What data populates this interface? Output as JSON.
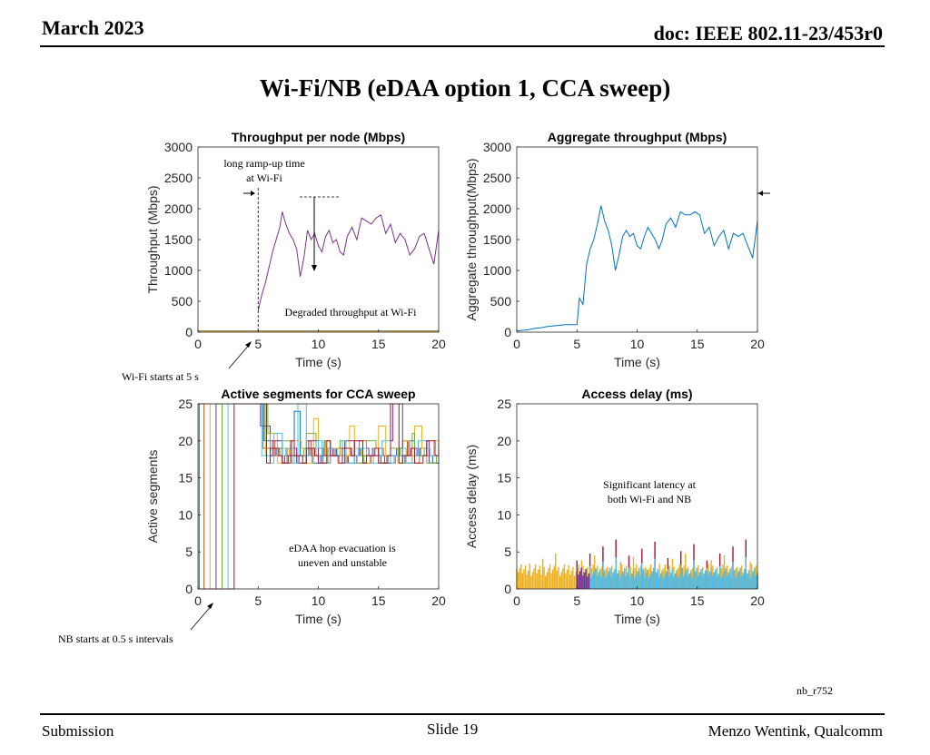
{
  "header": {
    "date": "March 2023",
    "doc": "doc: IEEE 802.11-23/453r0"
  },
  "slide_title": "Wi-Fi/NB (eDAA option 1, CCA sweep)",
  "annotations": {
    "ramp_up": "long ramp-up time at Wi-Fi",
    "degraded": "Degraded throughput at Wi-Fi",
    "wifi_starts": "Wi-Fi starts at 5 s",
    "hop_evac": "eDAA hop evacuation is uneven and unstable",
    "latency": "Significant latency at both Wi-Fi and NB",
    "nb_starts": "NB starts at 0.5 s intervals",
    "ref": "nb_r752"
  },
  "footer": {
    "left": "Submission",
    "center": "Slide 19",
    "right": "Menzo Wentink, Qualcomm"
  },
  "colors": {
    "purple": "#7e2f8e",
    "blue": "#0072bd",
    "orange": "#d95319",
    "yellow": "#edb120",
    "green": "#77ac30",
    "cyan": "#4dbeee",
    "red": "#a2142f"
  },
  "chart_data": [
    {
      "type": "line",
      "title": "Throughput per node (Mbps)",
      "xlabel": "Time (s)",
      "ylabel": "Throughput (Mbps)",
      "xlim": [
        0,
        20
      ],
      "ylim": [
        0,
        3000
      ],
      "xticks": [
        0,
        5,
        10,
        15,
        20
      ],
      "yticks": [
        0,
        500,
        1000,
        1500,
        2000,
        2500,
        3000
      ],
      "series": [
        {
          "color": "#7e2f8e",
          "x": [
            5,
            5.3,
            5.6,
            5.9,
            6.2,
            6.5,
            6.8,
            7.0,
            7.3,
            7.6,
            7.9,
            8.2,
            8.5,
            8.8,
            9.1,
            9.4,
            9.7,
            10.0,
            10.3,
            10.6,
            10.9,
            11.2,
            11.5,
            11.8,
            12.1,
            12.4,
            12.8,
            13.2,
            13.6,
            14.0,
            14.4,
            14.8,
            15.2,
            15.6,
            16.0,
            16.4,
            16.8,
            17.2,
            17.6,
            18.0,
            18.4,
            18.8,
            19.2,
            19.6,
            20
          ],
          "y": [
            350,
            600,
            800,
            1050,
            1300,
            1500,
            1700,
            1950,
            1750,
            1600,
            1500,
            1350,
            900,
            1200,
            1650,
            1500,
            1600,
            1400,
            1300,
            1550,
            1650,
            1450,
            1500,
            1300,
            1250,
            1550,
            1700,
            1500,
            1850,
            1800,
            1750,
            1850,
            1900,
            1600,
            1750,
            1450,
            1600,
            1500,
            1250,
            1350,
            1550,
            1600,
            1350,
            1100,
            1650
          ]
        },
        {
          "color": "#0072bd",
          "x": [
            0,
            20
          ],
          "y": [
            20,
            20
          ]
        },
        {
          "color": "#d95319",
          "x": [
            0,
            20
          ],
          "y": [
            15,
            15
          ]
        },
        {
          "color": "#edb120",
          "x": [
            0,
            20
          ],
          "y": [
            10,
            10
          ]
        }
      ]
    },
    {
      "type": "line",
      "title": "Aggregate throughput (Mbps)",
      "xlabel": "Time (s)",
      "ylabel": "Aggregate throughput(Mbps)",
      "xlim": [
        0,
        20
      ],
      "ylim": [
        0,
        3000
      ],
      "xticks": [
        0,
        5,
        10,
        15,
        20
      ],
      "yticks": [
        0,
        500,
        1000,
        1500,
        2000,
        2500,
        3000
      ],
      "series": [
        {
          "color": "#0072bd",
          "x": [
            0,
            0.5,
            1,
            1.5,
            2,
            2.5,
            3,
            3.5,
            4,
            4.5,
            5,
            5.2,
            5.5,
            5.8,
            6.1,
            6.4,
            6.7,
            7.0,
            7.3,
            7.6,
            7.9,
            8.2,
            8.5,
            8.8,
            9.1,
            9.4,
            9.7,
            10.0,
            10.3,
            10.6,
            10.9,
            11.2,
            11.5,
            11.8,
            12.1,
            12.4,
            12.8,
            13.2,
            13.6,
            14.0,
            14.4,
            14.8,
            15.2,
            15.6,
            16.0,
            16.4,
            16.8,
            17.2,
            17.6,
            18.0,
            18.4,
            18.8,
            19.2,
            19.6,
            20
          ],
          "y": [
            20,
            30,
            40,
            60,
            70,
            90,
            100,
            110,
            120,
            120,
            120,
            550,
            450,
            1100,
            1350,
            1500,
            1750,
            2050,
            1800,
            1650,
            1400,
            1000,
            1250,
            1550,
            1650,
            1550,
            1600,
            1400,
            1350,
            1550,
            1700,
            1600,
            1500,
            1350,
            1500,
            1750,
            1850,
            1700,
            1950,
            1900,
            1900,
            1950,
            1900,
            1600,
            1700,
            1400,
            1550,
            1650,
            1350,
            1600,
            1550,
            1600,
            1400,
            1200,
            1800
          ]
        }
      ]
    },
    {
      "type": "line",
      "title": "Active segments for CCA sweep",
      "xlabel": "Time (s)",
      "ylabel": "Active segments",
      "xlim": [
        0,
        20
      ],
      "ylim": [
        0,
        25
      ],
      "xticks": [
        0,
        5,
        10,
        15,
        20
      ],
      "yticks": [
        0,
        5,
        10,
        15,
        20,
        25
      ],
      "series": [
        {
          "color": "#0072bd",
          "x": [
            0,
            0.1,
            5,
            5.5,
            6,
            6.5,
            7,
            7.5,
            8,
            8.5,
            9,
            9.5,
            10,
            10.5,
            11,
            11.5,
            12,
            12.5,
            13,
            13.5,
            14,
            14.5,
            15,
            15.5,
            16,
            16.5,
            17,
            17.5,
            18,
            18.5,
            19,
            19.5,
            20
          ],
          "y": [
            0,
            25,
            25,
            20,
            18,
            19,
            17,
            18,
            24,
            18,
            19,
            17,
            18,
            20,
            18,
            19,
            18,
            17,
            19,
            18,
            18,
            19,
            18,
            17,
            18,
            19,
            18,
            20,
            18,
            19,
            18,
            17,
            18
          ]
        },
        {
          "color": "#d95319",
          "x": [
            0,
            0.5,
            5,
            5.4,
            6,
            6.4,
            7,
            7.4,
            8,
            8.4,
            9,
            9.4,
            10,
            10.4,
            11,
            11.4,
            12,
            12.4,
            13,
            13.4,
            14,
            14.4,
            15,
            15.4,
            16,
            16.4,
            17,
            17.4,
            18,
            18.4,
            19,
            19.4,
            20
          ],
          "y": [
            0,
            25,
            25,
            19,
            20,
            18,
            17,
            19,
            18,
            17,
            20,
            18,
            19,
            17,
            18,
            19,
            17,
            18,
            18,
            20,
            17,
            18,
            19,
            18,
            17,
            18,
            20,
            18,
            17,
            19,
            18,
            18,
            17
          ]
        },
        {
          "color": "#edb120",
          "x": [
            0,
            1.0,
            5,
            5.6,
            6,
            6.6,
            7,
            7.6,
            8,
            8.6,
            9,
            9.6,
            10,
            10.6,
            11,
            11.6,
            12,
            12.6,
            13,
            13.6,
            14,
            14.6,
            15,
            15.6,
            16,
            16.6,
            17,
            17.6,
            18,
            18.6,
            19,
            19.6,
            20
          ],
          "y": [
            0,
            25,
            25,
            18,
            21,
            17,
            19,
            18,
            20,
            19,
            17,
            23,
            18,
            20,
            19,
            17,
            18,
            22,
            19,
            18,
            17,
            19,
            22,
            18,
            19,
            17,
            20,
            18,
            22,
            19,
            18,
            20,
            17
          ]
        },
        {
          "color": "#7e2f8e",
          "x": [
            0,
            1.5,
            5,
            5.2,
            6,
            6.2,
            7,
            7.2,
            8,
            8.2,
            9,
            9.2,
            10,
            10.2,
            11,
            11.2,
            12,
            12.2,
            13,
            13.2,
            14,
            14.2,
            15,
            15.2,
            16,
            16.2,
            17,
            17.2,
            18,
            18.2,
            19,
            19.2,
            20
          ],
          "y": [
            0,
            25,
            25,
            22,
            18,
            20,
            17,
            18,
            19,
            17,
            18,
            20,
            17,
            18,
            19,
            18,
            17,
            20,
            18,
            17,
            19,
            18,
            18,
            17,
            20,
            25,
            18,
            17,
            19,
            18,
            20,
            17,
            18
          ]
        },
        {
          "color": "#77ac30",
          "x": [
            0,
            2.0,
            5,
            5.8,
            6,
            6.8,
            7,
            7.8,
            8,
            8.8,
            9,
            9.8,
            10,
            10.8,
            11,
            11.8,
            12,
            12.8,
            13,
            13.8,
            14,
            14.8,
            15,
            15.8,
            16,
            16.8,
            17,
            17.8,
            18,
            18.8,
            19,
            19.8,
            20
          ],
          "y": [
            0,
            25,
            25,
            21,
            19,
            18,
            20,
            17,
            18,
            19,
            21,
            18,
            17,
            19,
            18,
            20,
            19,
            18,
            17,
            18,
            20,
            19,
            17,
            18,
            19,
            18,
            17,
            21,
            18,
            19,
            17,
            18,
            20
          ]
        },
        {
          "color": "#4dbeee",
          "x": [
            0,
            2.5,
            5,
            5.3,
            6,
            6.3,
            7,
            7.3,
            8,
            8.3,
            9,
            9.3,
            10,
            10.3,
            11,
            11.3,
            12,
            12.3,
            13,
            13.3,
            14,
            14.3,
            15,
            15.3,
            16,
            16.3,
            17,
            17.3,
            18,
            18.3,
            19,
            19.3,
            20
          ],
          "y": [
            0,
            25,
            25,
            18,
            17,
            21,
            18,
            19,
            17,
            25,
            18,
            19,
            20,
            17,
            19,
            18,
            20,
            17,
            18,
            19,
            18,
            17,
            18,
            20,
            17,
            18,
            19,
            17,
            18,
            20,
            19,
            18,
            17
          ]
        },
        {
          "color": "#a2142f",
          "x": [
            0,
            3.0,
            5,
            5.7,
            6,
            6.7,
            7,
            7.7,
            8,
            8.7,
            9,
            9.7,
            10,
            10.7,
            11,
            11.7,
            12,
            12.7,
            13,
            13.7,
            14,
            14.7,
            15,
            15.7,
            16,
            16.7,
            17,
            17.7,
            18,
            18.7,
            19,
            19.7,
            20
          ],
          "y": [
            0,
            25,
            25,
            17,
            19,
            18,
            17,
            20,
            18,
            17,
            19,
            18,
            17,
            20,
            18,
            17,
            19,
            18,
            20,
            17,
            18,
            19,
            17,
            18,
            25,
            17,
            18,
            19,
            17,
            18,
            20,
            18,
            19
          ]
        }
      ]
    },
    {
      "type": "bar",
      "title": "Access delay (ms)",
      "xlabel": "Time (s)",
      "ylabel": "Access delay (ms)",
      "xlim": [
        0,
        20
      ],
      "ylim": [
        0,
        25
      ],
      "xticks": [
        0,
        5,
        10,
        15,
        20
      ],
      "yticks": [
        0,
        5,
        10,
        15,
        20,
        25
      ],
      "series": [
        {
          "color": "#a2142f",
          "x_range": [
            5,
            20
          ],
          "typical_max": 2.5,
          "peak": 7
        },
        {
          "color": "#edb120",
          "x_range": [
            0,
            20
          ],
          "typical_max": 3.5,
          "peak": 5
        },
        {
          "color": "#4dbeee",
          "x_range": [
            5,
            20
          ],
          "typical_max": 3.0,
          "peak": 4.5
        },
        {
          "color": "#7e2f8e",
          "x_range": [
            5,
            6
          ],
          "typical_max": 3.0,
          "peak": 7
        }
      ]
    }
  ]
}
